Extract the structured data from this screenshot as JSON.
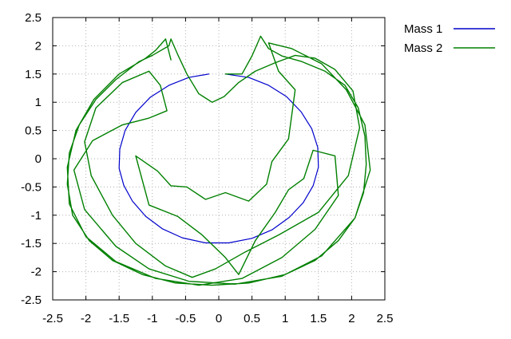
{
  "chart_data": {
    "type": "line",
    "title": "",
    "xlabel": "",
    "ylabel": "",
    "xlim": [
      -2.5,
      2.5
    ],
    "ylim": [
      -2.5,
      2.5
    ],
    "x_ticks": [
      -2.5,
      -2,
      -1.5,
      -1,
      -0.5,
      0,
      0.5,
      1,
      1.5,
      2,
      2.5
    ],
    "y_ticks": [
      -2.5,
      -2,
      -1.5,
      -1,
      -0.5,
      0,
      0.5,
      1,
      1.5,
      2,
      2.5
    ],
    "x_tick_labels": [
      "-2.5",
      "-2",
      "-1.5",
      "-1",
      "-0.5",
      "0",
      "0.5",
      "1",
      "1.5",
      "2",
      "2.5"
    ],
    "y_tick_labels": [
      "-2.5",
      "-2",
      "-1.5",
      "-1",
      "-0.5",
      "0",
      "0.5",
      "1",
      "1.5",
      "2",
      "2.5"
    ],
    "grid": true,
    "legend_position": "outside-top-right",
    "series": [
      {
        "name": "Mass 1",
        "color": "#0000cc",
        "description_kind": "near-circle",
        "points": [
          [
            -0.15,
            1.5
          ],
          [
            -0.45,
            1.44
          ],
          [
            -0.75,
            1.3
          ],
          [
            -1.03,
            1.09
          ],
          [
            -1.25,
            0.82
          ],
          [
            -1.41,
            0.5
          ],
          [
            -1.49,
            0.17
          ],
          [
            -1.5,
            -0.17
          ],
          [
            -1.43,
            -0.47
          ],
          [
            -1.3,
            -0.75
          ],
          [
            -1.1,
            -1.02
          ],
          [
            -0.85,
            -1.24
          ],
          [
            -0.55,
            -1.4
          ],
          [
            -0.2,
            -1.49
          ],
          [
            0.15,
            -1.49
          ],
          [
            0.5,
            -1.41
          ],
          [
            0.8,
            -1.26
          ],
          [
            1.06,
            -1.04
          ],
          [
            1.27,
            -0.78
          ],
          [
            1.42,
            -0.48
          ],
          [
            1.5,
            -0.15
          ],
          [
            1.49,
            0.2
          ],
          [
            1.4,
            0.53
          ],
          [
            1.24,
            0.83
          ],
          [
            1.02,
            1.1
          ],
          [
            0.75,
            1.3
          ],
          [
            0.45,
            1.44
          ],
          [
            0.1,
            1.5
          ]
        ]
      },
      {
        "name": "Mass 2",
        "color": "#008000",
        "description_kind": "chaotic-trajectory",
        "points": [
          [
            0.1,
            1.5
          ],
          [
            0.35,
            1.5
          ],
          [
            0.5,
            1.82
          ],
          [
            0.63,
            2.17
          ],
          [
            0.75,
            1.95
          ],
          [
            0.95,
            1.82
          ],
          [
            1.25,
            1.72
          ],
          [
            1.6,
            1.55
          ],
          [
            1.9,
            1.3
          ],
          [
            2.1,
            0.9
          ],
          [
            2.2,
            0.4
          ],
          [
            2.22,
            -0.1
          ],
          [
            2.18,
            -0.6
          ],
          [
            2.05,
            -1.05
          ],
          [
            1.8,
            -1.45
          ],
          [
            1.45,
            -1.8
          ],
          [
            1.0,
            -2.05
          ],
          [
            0.45,
            -2.2
          ],
          [
            -0.1,
            -2.24
          ],
          [
            -0.65,
            -2.2
          ],
          [
            -1.15,
            -2.05
          ],
          [
            -1.6,
            -1.8
          ],
          [
            -1.95,
            -1.45
          ],
          [
            -2.2,
            -1.0
          ],
          [
            -2.28,
            -0.45
          ],
          [
            -2.25,
            0.1
          ],
          [
            -2.1,
            0.6
          ],
          [
            -1.85,
            1.05
          ],
          [
            -1.55,
            1.4
          ],
          [
            -1.2,
            1.72
          ],
          [
            -1.0,
            1.83
          ],
          [
            -0.75,
            2.0
          ],
          [
            -0.72,
            2.12
          ],
          [
            -0.62,
            1.85
          ],
          [
            -0.48,
            1.5
          ],
          [
            -0.3,
            1.15
          ],
          [
            -0.1,
            1.0
          ],
          [
            0.08,
            1.1
          ],
          [
            0.3,
            1.35
          ],
          [
            0.55,
            1.55
          ],
          [
            0.85,
            1.7
          ],
          [
            1.15,
            1.83
          ],
          [
            1.45,
            1.78
          ],
          [
            1.75,
            1.58
          ],
          [
            2.02,
            1.2
          ],
          [
            2.12,
            0.55
          ],
          [
            1.95,
            -0.3
          ],
          [
            1.5,
            -0.95
          ],
          [
            0.9,
            -1.35
          ],
          [
            0.4,
            -1.65
          ],
          [
            -0.05,
            -1.95
          ],
          [
            -0.4,
            -2.1
          ],
          [
            -0.8,
            -1.9
          ],
          [
            -1.25,
            -1.5
          ],
          [
            -1.6,
            -1.0
          ],
          [
            -1.92,
            -0.3
          ],
          [
            -2.02,
            0.3
          ],
          [
            -1.85,
            0.9
          ],
          [
            -1.45,
            1.35
          ],
          [
            -1.05,
            1.55
          ],
          [
            -0.88,
            1.3
          ],
          [
            -0.78,
            0.85
          ],
          [
            -1.05,
            0.72
          ],
          [
            -1.45,
            0.6
          ],
          [
            -1.9,
            0.32
          ],
          [
            -2.18,
            -0.2
          ],
          [
            -2.02,
            -0.9
          ],
          [
            -1.55,
            -1.55
          ],
          [
            -1.05,
            -1.95
          ],
          [
            -0.45,
            -2.17
          ],
          [
            0.25,
            -2.22
          ],
          [
            0.95,
            -2.08
          ],
          [
            1.55,
            -1.72
          ],
          [
            2.05,
            -1.05
          ],
          [
            2.28,
            -0.2
          ],
          [
            2.2,
            0.6
          ],
          [
            1.92,
            1.22
          ],
          [
            1.55,
            1.68
          ],
          [
            1.1,
            1.95
          ],
          [
            0.75,
            2.05
          ],
          [
            0.9,
            1.55
          ],
          [
            1.15,
            1.22
          ],
          [
            1.05,
            0.35
          ],
          [
            0.8,
            -0.05
          ],
          [
            0.72,
            -0.45
          ],
          [
            0.45,
            -0.75
          ],
          [
            0.1,
            -0.6
          ],
          [
            -0.2,
            -0.72
          ],
          [
            -0.48,
            -0.5
          ],
          [
            -0.72,
            -0.48
          ],
          [
            -0.92,
            -0.22
          ],
          [
            -1.25,
            0.05
          ],
          [
            -1.05,
            -0.82
          ],
          [
            -0.62,
            -1.02
          ],
          [
            -0.25,
            -1.35
          ],
          [
            0.1,
            -1.75
          ],
          [
            0.3,
            -2.05
          ],
          [
            0.55,
            -1.45
          ],
          [
            0.85,
            -0.95
          ],
          [
            1.05,
            -0.55
          ],
          [
            1.28,
            -0.35
          ],
          [
            1.42,
            0.15
          ],
          [
            1.75,
            0.05
          ],
          [
            1.8,
            -0.65
          ],
          [
            1.45,
            -1.25
          ],
          [
            0.95,
            -1.75
          ],
          [
            0.35,
            -2.12
          ],
          [
            -0.3,
            -2.24
          ],
          [
            -0.95,
            -2.12
          ],
          [
            -1.55,
            -1.82
          ],
          [
            -2.0,
            -1.38
          ],
          [
            -2.25,
            -0.8
          ],
          [
            -2.28,
            -0.15
          ],
          [
            -2.15,
            0.5
          ],
          [
            -1.88,
            1.05
          ],
          [
            -1.5,
            1.5
          ],
          [
            -1.1,
            1.78
          ],
          [
            -0.95,
            1.92
          ],
          [
            -0.8,
            2.12
          ],
          [
            -0.72,
            1.75
          ]
        ]
      }
    ]
  }
}
